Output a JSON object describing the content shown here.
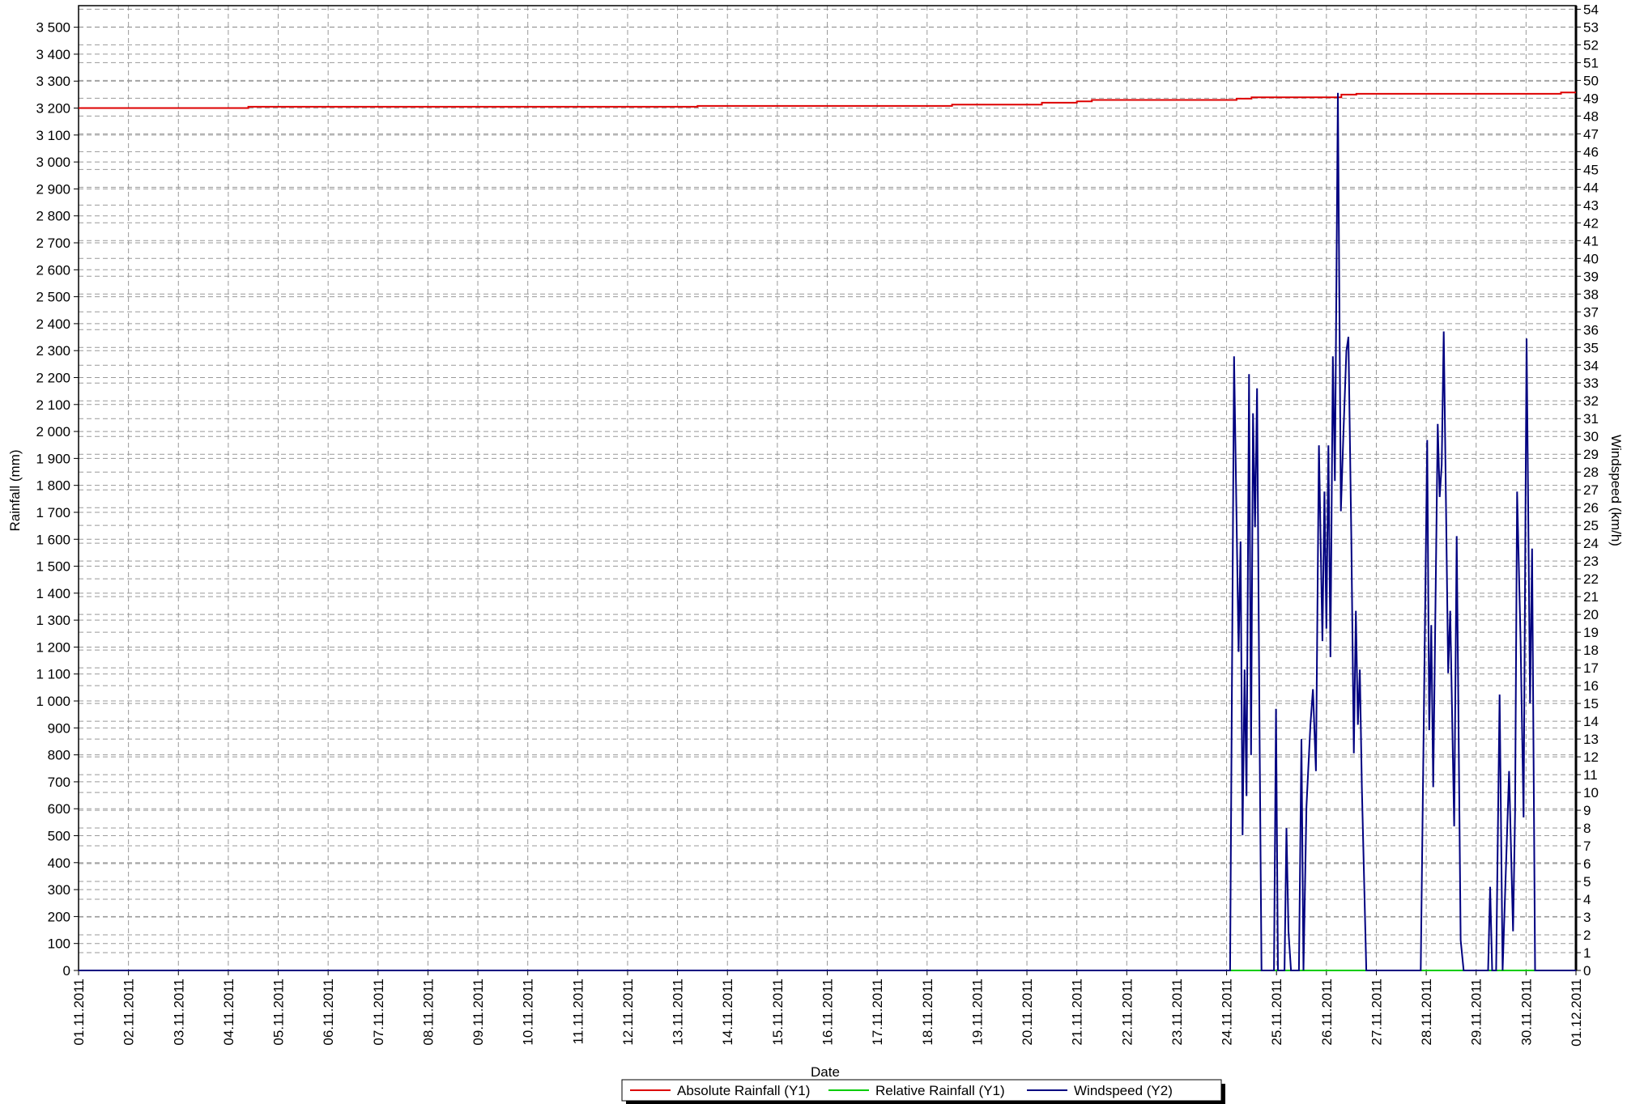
{
  "chart_data": {
    "type": "line",
    "xlabel": "Date",
    "ylabel": "Rainfall (mm)",
    "y2label": "Windspeed (km/h)",
    "xlim": [
      0,
      30
    ],
    "xticks": [
      {
        "value": 0,
        "label": "01.11.2011"
      },
      {
        "value": 1,
        "label": "02.11.2011"
      },
      {
        "value": 2,
        "label": "03.11.2011"
      },
      {
        "value": 3,
        "label": "04.11.2011"
      },
      {
        "value": 4,
        "label": "05.11.2011"
      },
      {
        "value": 5,
        "label": "06.11.2011"
      },
      {
        "value": 6,
        "label": "07.11.2011"
      },
      {
        "value": 7,
        "label": "08.11.2011"
      },
      {
        "value": 8,
        "label": "09.11.2011"
      },
      {
        "value": 9,
        "label": "10.11.2011"
      },
      {
        "value": 10,
        "label": "11.11.2011"
      },
      {
        "value": 11,
        "label": "12.11.2011"
      },
      {
        "value": 12,
        "label": "13.11.2011"
      },
      {
        "value": 13,
        "label": "14.11.2011"
      },
      {
        "value": 14,
        "label": "15.11.2011"
      },
      {
        "value": 15,
        "label": "16.11.2011"
      },
      {
        "value": 16,
        "label": "17.11.2011"
      },
      {
        "value": 17,
        "label": "18.11.2011"
      },
      {
        "value": 18,
        "label": "19.11.2011"
      },
      {
        "value": 19,
        "label": "20.11.2011"
      },
      {
        "value": 20,
        "label": "21.11.2011"
      },
      {
        "value": 21,
        "label": "22.11.2011"
      },
      {
        "value": 22,
        "label": "23.11.2011"
      },
      {
        "value": 23,
        "label": "24.11.2011"
      },
      {
        "value": 24,
        "label": "25.11.2011"
      },
      {
        "value": 25,
        "label": "26.11.2011"
      },
      {
        "value": 26,
        "label": "27.11.2011"
      },
      {
        "value": 27,
        "label": "28.11.2011"
      },
      {
        "value": 28,
        "label": "29.11.2011"
      },
      {
        "value": 29,
        "label": "30.11.2011"
      },
      {
        "value": 30,
        "label": "01.12.2011"
      }
    ],
    "ylim": [
      0,
      3580
    ],
    "yticks": [
      0,
      100,
      200,
      300,
      400,
      500,
      600,
      700,
      800,
      900,
      {
        "value": 1000,
        "label": "1 000"
      },
      {
        "value": 1100,
        "label": "1 100"
      },
      {
        "value": 1200,
        "label": "1 200"
      },
      {
        "value": 1300,
        "label": "1 300"
      },
      {
        "value": 1400,
        "label": "1 400"
      },
      {
        "value": 1500,
        "label": "1 500"
      },
      {
        "value": 1600,
        "label": "1 600"
      },
      {
        "value": 1700,
        "label": "1 700"
      },
      {
        "value": 1800,
        "label": "1 800"
      },
      {
        "value": 1900,
        "label": "1 900"
      },
      {
        "value": 2000,
        "label": "2 000"
      },
      {
        "value": 2100,
        "label": "2 100"
      },
      {
        "value": 2200,
        "label": "2 200"
      },
      {
        "value": 2300,
        "label": "2 300"
      },
      {
        "value": 2400,
        "label": "2 400"
      },
      {
        "value": 2500,
        "label": "2 500"
      },
      {
        "value": 2600,
        "label": "2 600"
      },
      {
        "value": 2700,
        "label": "2 700"
      },
      {
        "value": 2800,
        "label": "2 800"
      },
      {
        "value": 2900,
        "label": "2 900"
      },
      {
        "value": 3000,
        "label": "3 000"
      },
      {
        "value": 3100,
        "label": "3 100"
      },
      {
        "value": 3200,
        "label": "3 200"
      },
      {
        "value": 3300,
        "label": "3 300"
      },
      {
        "value": 3400,
        "label": "3 400"
      },
      {
        "value": 3500,
        "label": "3 500"
      }
    ],
    "y2lim": [
      0,
      54.2
    ],
    "y2ticks": [
      0,
      1,
      2,
      3,
      4,
      5,
      6,
      7,
      8,
      9,
      10,
      11,
      12,
      13,
      14,
      15,
      16,
      17,
      18,
      19,
      20,
      21,
      22,
      23,
      24,
      25,
      26,
      27,
      28,
      29,
      30,
      31,
      32,
      33,
      34,
      35,
      36,
      37,
      38,
      39,
      40,
      41,
      42,
      43,
      44,
      45,
      46,
      47,
      48,
      49,
      50,
      51,
      52,
      53,
      54
    ],
    "grid": true,
    "legend": "bottom",
    "series": [
      {
        "name": "Absolute Rainfall (Y1)",
        "color": "#dd0000",
        "axis": "y",
        "x": [
          0,
          3.4,
          3.4,
          12.4,
          12.4,
          17.5,
          17.5,
          19.3,
          19.3,
          20.0,
          20.0,
          20.3,
          20.3,
          23.2,
          23.2,
          23.5,
          23.5,
          25.3,
          25.3,
          25.6,
          25.6,
          29.7,
          29.7,
          30
        ],
        "values": [
          3200,
          3200,
          3205,
          3205,
          3208,
          3208,
          3213,
          3213,
          3220,
          3220,
          3225,
          3225,
          3230,
          3230,
          3235,
          3235,
          3240,
          3240,
          3250,
          3250,
          3253,
          3253,
          3258,
          3258
        ]
      },
      {
        "name": "Relative Rainfall (Y1)",
        "color": "#00cc00",
        "axis": "y",
        "x": [
          0,
          30
        ],
        "values": [
          0,
          0
        ]
      },
      {
        "name": "Windspeed (Y2)",
        "color": "#000080",
        "axis": "y2",
        "x": [
          0,
          23.07,
          23.15,
          23.24,
          23.28,
          23.32,
          23.36,
          23.4,
          23.45,
          23.49,
          23.53,
          23.57,
          23.61,
          23.66,
          23.7,
          23.95,
          23.99,
          24.03,
          24.16,
          24.2,
          24.24,
          24.29,
          24.45,
          24.5,
          24.54,
          24.6,
          24.68,
          24.73,
          24.79,
          24.85,
          24.92,
          24.96,
          25.0,
          25.04,
          25.08,
          25.13,
          25.17,
          25.23,
          25.29,
          25.34,
          25.4,
          25.44,
          25.5,
          25.55,
          25.59,
          25.63,
          25.67,
          25.71,
          25.8,
          26.89,
          27.02,
          27.06,
          27.1,
          27.14,
          27.23,
          27.27,
          27.31,
          27.35,
          27.44,
          27.48,
          27.56,
          27.61,
          27.69,
          27.75,
          28.24,
          28.28,
          28.32,
          28.4,
          28.47,
          28.53,
          28.66,
          28.74,
          28.78,
          28.82,
          28.89,
          28.95,
          29.01,
          29.08,
          29.12,
          29.18,
          30.0
        ],
        "values": [
          0,
          0,
          34.5,
          17.9,
          24.1,
          7.6,
          16.9,
          9.8,
          33.5,
          12.1,
          31.3,
          24.9,
          32.7,
          13.8,
          0,
          0,
          14.7,
          0,
          0,
          8.0,
          2.2,
          0,
          0,
          13.0,
          0,
          9.2,
          13.8,
          15.8,
          11.2,
          29.5,
          18.5,
          26.9,
          19.2,
          29.5,
          17.6,
          34.5,
          27.5,
          49.3,
          25.8,
          30.1,
          34.8,
          35.6,
          24.3,
          12.2,
          20.2,
          13.8,
          16.9,
          10.3,
          0,
          0,
          29.8,
          13.5,
          19.4,
          10.3,
          30.7,
          26.6,
          28.4,
          35.9,
          16.7,
          20.2,
          8.1,
          24.4,
          1.7,
          0,
          0,
          4.7,
          0,
          0,
          15.5,
          0,
          11.2,
          2.2,
          8.9,
          26.9,
          18.5,
          8.6,
          35.5,
          15.0,
          23.7,
          0,
          0
        ]
      }
    ]
  }
}
